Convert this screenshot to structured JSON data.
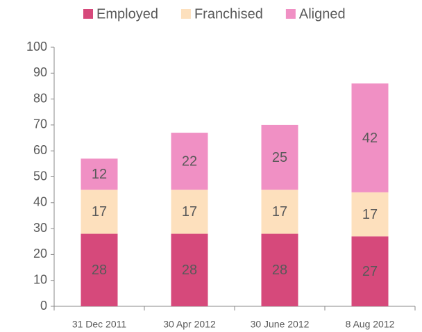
{
  "chart_data": {
    "type": "stacked_bar",
    "categories": [
      "31 Dec 2011",
      "30 Apr 2012",
      "30 June 2012",
      "8 Aug 2012"
    ],
    "series": [
      {
        "name": "Employed",
        "color": "#d6497b",
        "values": [
          28,
          28,
          28,
          27
        ]
      },
      {
        "name": "Franchised",
        "color": "#fde0bd",
        "values": [
          17,
          17,
          17,
          17
        ]
      },
      {
        "name": "Aligned",
        "color": "#f090c4",
        "values": [
          12,
          22,
          25,
          42
        ]
      }
    ],
    "ylim": [
      0,
      100
    ],
    "yticks": [
      0,
      10,
      20,
      30,
      40,
      50,
      60,
      70,
      80,
      90,
      100
    ],
    "legend": "top"
  }
}
